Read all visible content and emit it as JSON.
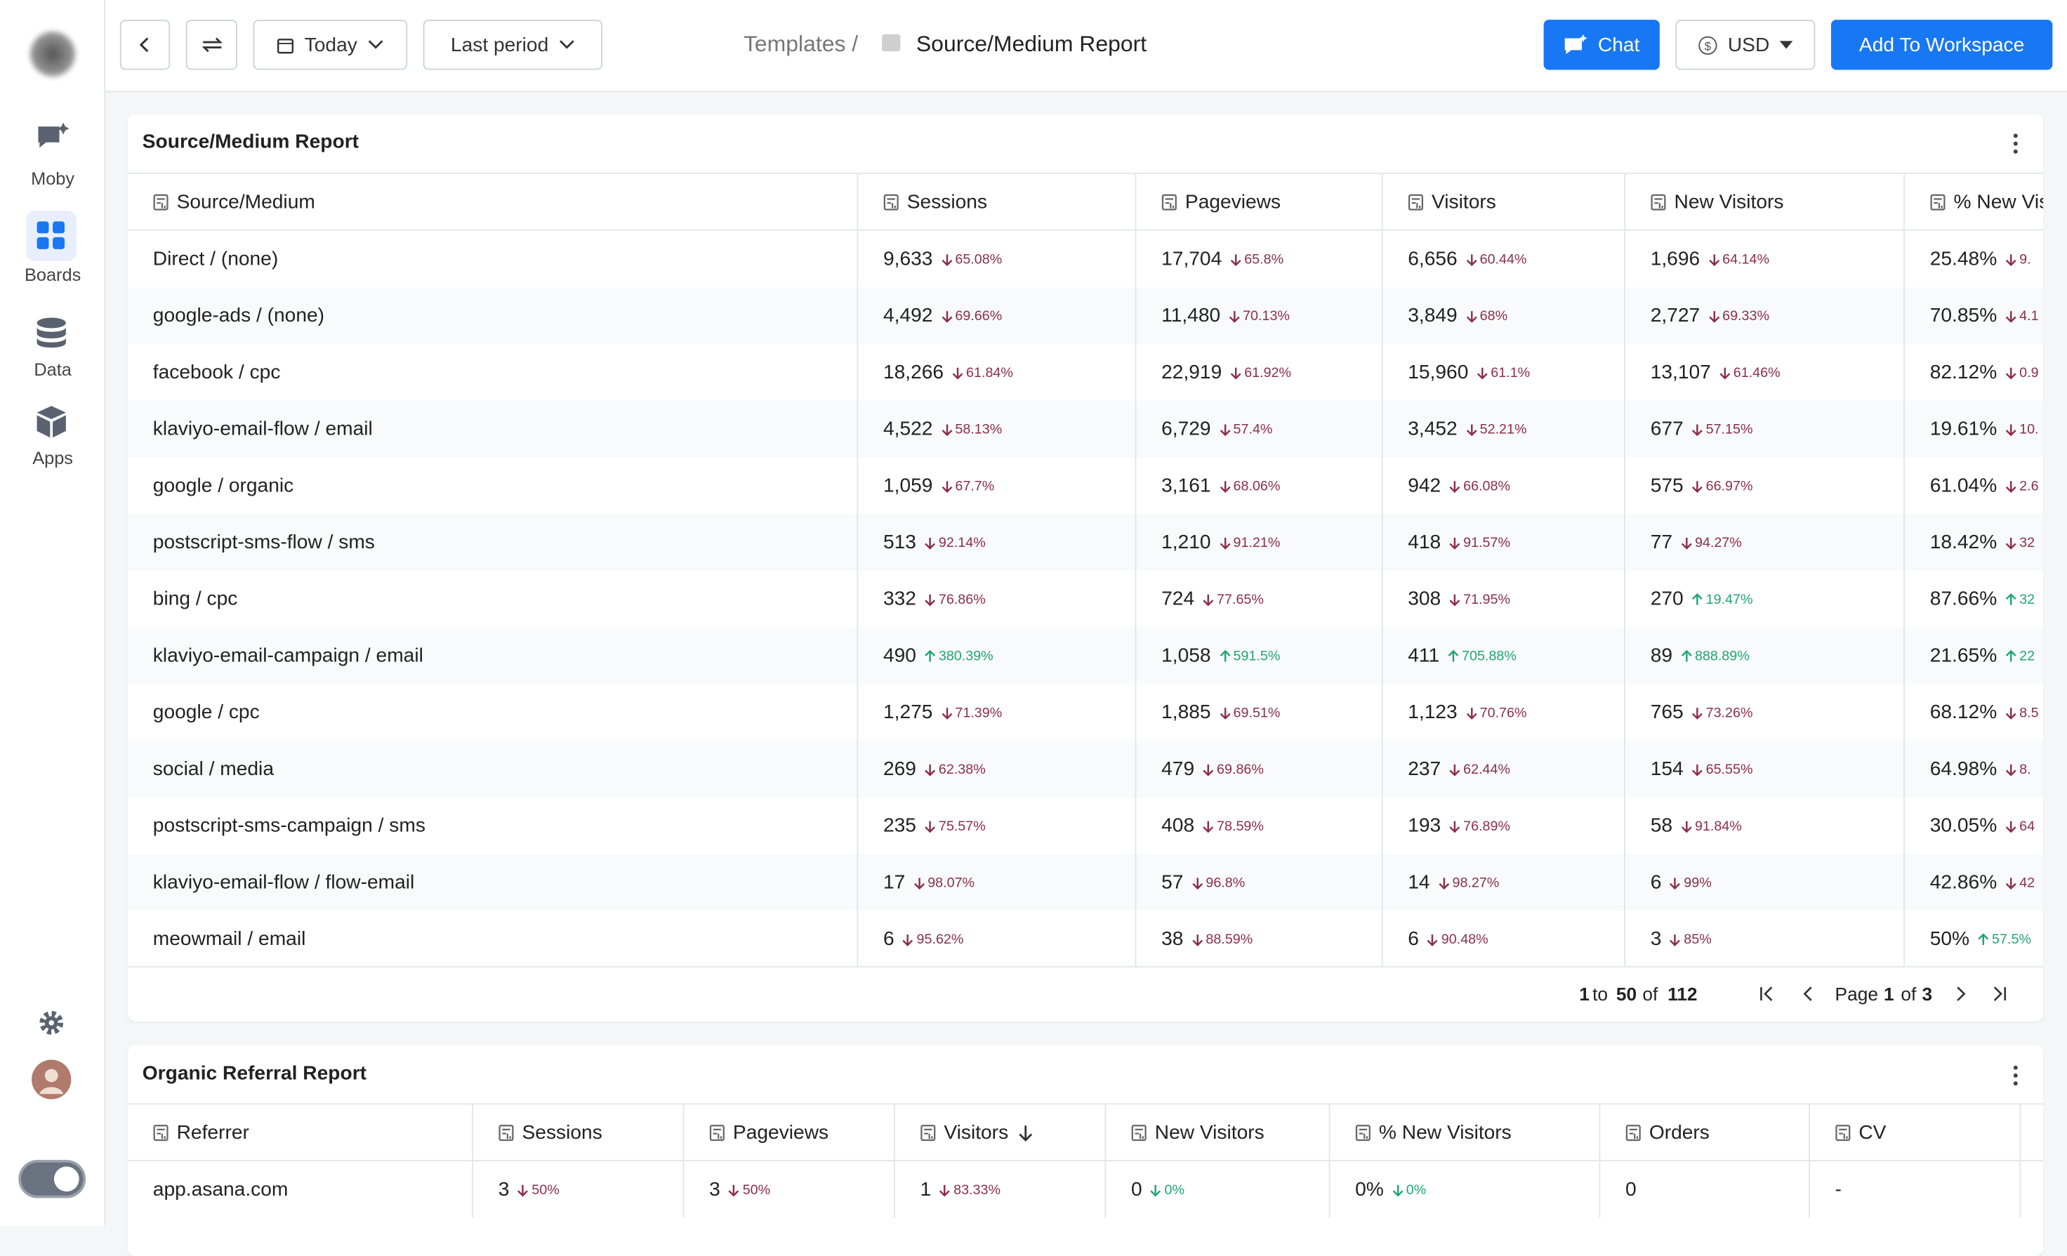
{
  "sidebar": {
    "items": [
      "Moby",
      "Boards",
      "Data",
      "Apps"
    ]
  },
  "toolbar": {
    "date": "Today",
    "compare": "Last period",
    "breadcrumb": "Templates /",
    "report": "Source/Medium Report",
    "chat": "Chat",
    "currency": "USD",
    "add": "Add To Workspace"
  },
  "table1": {
    "title": "Source/Medium Report",
    "columns": [
      "Source/Medium",
      "Sessions",
      "Pageviews",
      "Visitors",
      "New Visitors",
      "% New Visitors"
    ],
    "rows": [
      {
        "name": "Direct / (none)",
        "cells": [
          [
            "9,633",
            "65.08%",
            "down",
            "bad"
          ],
          [
            "17,704",
            "65.8%",
            "down",
            "bad"
          ],
          [
            "6,656",
            "60.44%",
            "down",
            "bad"
          ],
          [
            "1,696",
            "64.14%",
            "down",
            "bad"
          ],
          [
            "25.48%",
            "9.",
            "down",
            "bad"
          ]
        ]
      },
      {
        "name": "google-ads / (none)",
        "cells": [
          [
            "4,492",
            "69.66%",
            "down",
            "bad"
          ],
          [
            "11,480",
            "70.13%",
            "down",
            "bad"
          ],
          [
            "3,849",
            "68%",
            "down",
            "bad"
          ],
          [
            "2,727",
            "69.33%",
            "down",
            "bad"
          ],
          [
            "70.85%",
            "4.1",
            "down",
            "bad"
          ]
        ]
      },
      {
        "name": "facebook / cpc",
        "cells": [
          [
            "18,266",
            "61.84%",
            "down",
            "bad"
          ],
          [
            "22,919",
            "61.92%",
            "down",
            "bad"
          ],
          [
            "15,960",
            "61.1%",
            "down",
            "bad"
          ],
          [
            "13,107",
            "61.46%",
            "down",
            "bad"
          ],
          [
            "82.12%",
            "0.9",
            "down",
            "bad"
          ]
        ]
      },
      {
        "name": "klaviyo-email-flow / email",
        "cells": [
          [
            "4,522",
            "58.13%",
            "down",
            "bad"
          ],
          [
            "6,729",
            "57.4%",
            "down",
            "bad"
          ],
          [
            "3,452",
            "52.21%",
            "down",
            "bad"
          ],
          [
            "677",
            "57.15%",
            "down",
            "bad"
          ],
          [
            "19.61%",
            "10.",
            "down",
            "bad"
          ]
        ]
      },
      {
        "name": "google / organic",
        "cells": [
          [
            "1,059",
            "67.7%",
            "down",
            "bad"
          ],
          [
            "3,161",
            "68.06%",
            "down",
            "bad"
          ],
          [
            "942",
            "66.08%",
            "down",
            "bad"
          ],
          [
            "575",
            "66.97%",
            "down",
            "bad"
          ],
          [
            "61.04%",
            "2.6",
            "down",
            "bad"
          ]
        ]
      },
      {
        "name": "postscript-sms-flow / sms",
        "cells": [
          [
            "513",
            "92.14%",
            "down",
            "bad"
          ],
          [
            "1,210",
            "91.21%",
            "down",
            "bad"
          ],
          [
            "418",
            "91.57%",
            "down",
            "bad"
          ],
          [
            "77",
            "94.27%",
            "down",
            "bad"
          ],
          [
            "18.42%",
            "32",
            "down",
            "bad"
          ]
        ]
      },
      {
        "name": "bing / cpc",
        "cells": [
          [
            "332",
            "76.86%",
            "down",
            "bad"
          ],
          [
            "724",
            "77.65%",
            "down",
            "bad"
          ],
          [
            "308",
            "71.95%",
            "down",
            "bad"
          ],
          [
            "270",
            "19.47%",
            "up",
            "good"
          ],
          [
            "87.66%",
            "32",
            "up",
            "good"
          ]
        ]
      },
      {
        "name": "klaviyo-email-campaign / email",
        "cells": [
          [
            "490",
            "380.39%",
            "up",
            "good"
          ],
          [
            "1,058",
            "591.5%",
            "up",
            "good"
          ],
          [
            "411",
            "705.88%",
            "up",
            "good"
          ],
          [
            "89",
            "888.89%",
            "up",
            "good"
          ],
          [
            "21.65%",
            "22",
            "up",
            "good"
          ]
        ]
      },
      {
        "name": "google / cpc",
        "cells": [
          [
            "1,275",
            "71.39%",
            "down",
            "bad"
          ],
          [
            "1,885",
            "69.51%",
            "down",
            "bad"
          ],
          [
            "1,123",
            "70.76%",
            "down",
            "bad"
          ],
          [
            "765",
            "73.26%",
            "down",
            "bad"
          ],
          [
            "68.12%",
            "8.5",
            "down",
            "bad"
          ]
        ]
      },
      {
        "name": "social / media",
        "cells": [
          [
            "269",
            "62.38%",
            "down",
            "bad"
          ],
          [
            "479",
            "69.86%",
            "down",
            "bad"
          ],
          [
            "237",
            "62.44%",
            "down",
            "bad"
          ],
          [
            "154",
            "65.55%",
            "down",
            "bad"
          ],
          [
            "64.98%",
            "8.",
            "down",
            "bad"
          ]
        ]
      },
      {
        "name": "postscript-sms-campaign / sms",
        "cells": [
          [
            "235",
            "75.57%",
            "down",
            "bad"
          ],
          [
            "408",
            "78.59%",
            "down",
            "bad"
          ],
          [
            "193",
            "76.89%",
            "down",
            "bad"
          ],
          [
            "58",
            "91.84%",
            "down",
            "bad"
          ],
          [
            "30.05%",
            "64",
            "down",
            "bad"
          ]
        ]
      },
      {
        "name": "klaviyo-email-flow / flow-email",
        "cells": [
          [
            "17",
            "98.07%",
            "down",
            "bad"
          ],
          [
            "57",
            "96.8%",
            "down",
            "bad"
          ],
          [
            "14",
            "98.27%",
            "down",
            "bad"
          ],
          [
            "6",
            "99%",
            "down",
            "bad"
          ],
          [
            "42.86%",
            "42",
            "down",
            "bad"
          ]
        ]
      },
      {
        "name": "meowmail / email",
        "cells": [
          [
            "6",
            "95.62%",
            "down",
            "bad"
          ],
          [
            "38",
            "88.59%",
            "down",
            "bad"
          ],
          [
            "6",
            "90.48%",
            "down",
            "bad"
          ],
          [
            "3",
            "85%",
            "down",
            "bad"
          ],
          [
            "50%",
            "57.5%",
            "up",
            "good"
          ]
        ]
      }
    ],
    "pagination": {
      "from": "1",
      "to": "to",
      "shown": "50",
      "of": "of",
      "total": "112",
      "page": "Page",
      "current": "1",
      "of2": "of",
      "pages": "3"
    }
  },
  "table2": {
    "title": "Organic Referral Report",
    "columns": [
      "Referrer",
      "Sessions",
      "Pageviews",
      "Visitors",
      "New Visitors",
      "% New Visitors",
      "Orders",
      "CV"
    ],
    "rows": [
      {
        "name": "app.asana.com",
        "cells": [
          [
            "3",
            "50%",
            "down",
            "bad"
          ],
          [
            "3",
            "50%",
            "down",
            "bad"
          ],
          [
            "1",
            "83.33%",
            "down",
            "bad"
          ],
          [
            "0",
            "0%",
            "down",
            "good"
          ],
          [
            "0%",
            "0%",
            "down",
            "good"
          ],
          [
            "0"
          ],
          [
            "-"
          ]
        ]
      }
    ]
  }
}
